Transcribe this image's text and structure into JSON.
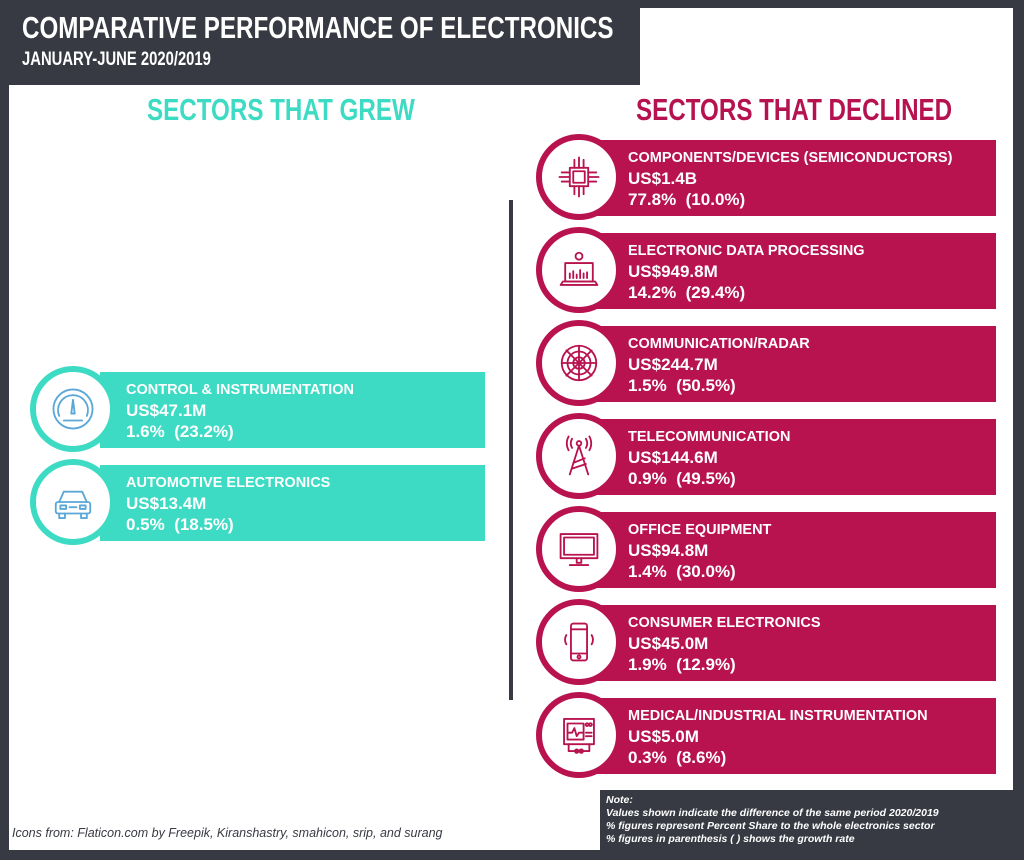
{
  "header": {
    "title": "COMPARATIVE PERFORMANCE OF ELECTRONICS",
    "subtitle": "JANUARY-JUNE 2020/2019"
  },
  "grew": {
    "heading": "SECTORS THAT GREW",
    "color": "#3ddbc3",
    "items": [
      {
        "name": "CONTROL & INSTRUMENTATION",
        "value": "US$47.1M",
        "share": "1.6%  (23.2%)",
        "icon": "gauge-icon"
      },
      {
        "name": "AUTOMOTIVE ELECTRONICS",
        "value": "US$13.4M",
        "share": "0.5%  (18.5%)",
        "icon": "car-icon"
      }
    ]
  },
  "declined": {
    "heading": "SECTORS THAT DECLINED",
    "color": "#b8124f",
    "items": [
      {
        "name": "COMPONENTS/DEVICES (SEMICONDUCTORS)",
        "value": "US$1.4B",
        "share": "77.8%  (10.0%)",
        "icon": "chip-icon"
      },
      {
        "name": "ELECTRONIC DATA PROCESSING",
        "value": "US$949.8M",
        "share": "14.2%  (29.4%)",
        "icon": "laptop-icon"
      },
      {
        "name": "COMMUNICATION/RADAR",
        "value": "US$244.7M",
        "share": "1.5%  (50.5%)",
        "icon": "radar-icon"
      },
      {
        "name": "TELECOMMUNICATION",
        "value": "US$144.6M",
        "share": "0.9%  (49.5%)",
        "icon": "tower-icon"
      },
      {
        "name": "OFFICE EQUIPMENT",
        "value": "US$94.8M",
        "share": "1.4%  (30.0%)",
        "icon": "monitor-icon"
      },
      {
        "name": "CONSUMER ELECTRONICS",
        "value": "US$45.0M",
        "share": "1.9%  (12.9%)",
        "icon": "phone-icon"
      },
      {
        "name": "MEDICAL/INDUSTRIAL INSTRUMENTATION",
        "value": "US$5.0M",
        "share": "0.3%  (8.6%)",
        "icon": "medical-monitor-icon"
      }
    ]
  },
  "note": {
    "heading": "Note:",
    "lines": [
      "Values shown indicate the difference of the same period 2020/2019",
      "% figures represent Percent Share to the whole electronics sector",
      "% figures in parenthesis ( ) shows the growth rate"
    ]
  },
  "credit": "Icons from: Flaticon.com by Freepik, Kiranshastry, smahicon, srip, and surang"
}
